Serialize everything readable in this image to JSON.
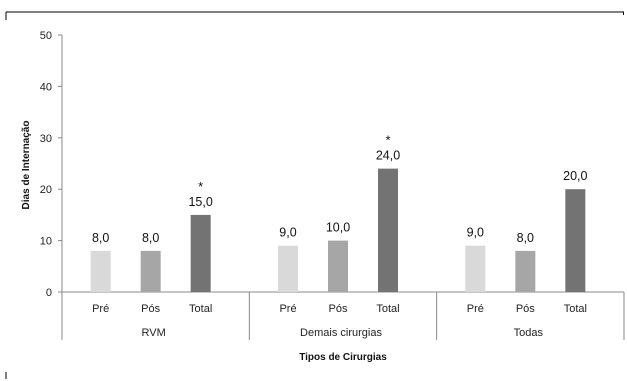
{
  "chart_data": {
    "type": "bar",
    "ylabel": "Dias de Internação",
    "xlabel": "Tipos de Cirurgias",
    "ylim": [
      0,
      50
    ],
    "yticks": [
      0,
      10,
      20,
      30,
      40,
      50
    ],
    "grid": false,
    "legend": "none",
    "colors": {
      "Pré": "#d9d9d9",
      "Pós": "#a6a6a6",
      "Total": "#737373"
    },
    "groups": [
      {
        "name": "RVM",
        "bars": [
          {
            "category": "Pré",
            "value": 8.0,
            "label": "8,0",
            "marker": ""
          },
          {
            "category": "Pós",
            "value": 8.0,
            "label": "8,0",
            "marker": ""
          },
          {
            "category": "Total",
            "value": 15.0,
            "label": "15,0",
            "marker": "*"
          }
        ]
      },
      {
        "name": "Demais cirurgias",
        "bars": [
          {
            "category": "Pré",
            "value": 9.0,
            "label": "9,0",
            "marker": ""
          },
          {
            "category": "Pós",
            "value": 10.0,
            "label": "10,0",
            "marker": ""
          },
          {
            "category": "Total",
            "value": 24.0,
            "label": "24,0",
            "marker": "*"
          }
        ]
      },
      {
        "name": "Todas",
        "bars": [
          {
            "category": "Pré",
            "value": 9.0,
            "label": "9,0",
            "marker": ""
          },
          {
            "category": "Pós",
            "value": 8.0,
            "label": "8,0",
            "marker": ""
          },
          {
            "category": "Total",
            "value": 20.0,
            "label": "20,0",
            "marker": ""
          }
        ]
      }
    ]
  }
}
